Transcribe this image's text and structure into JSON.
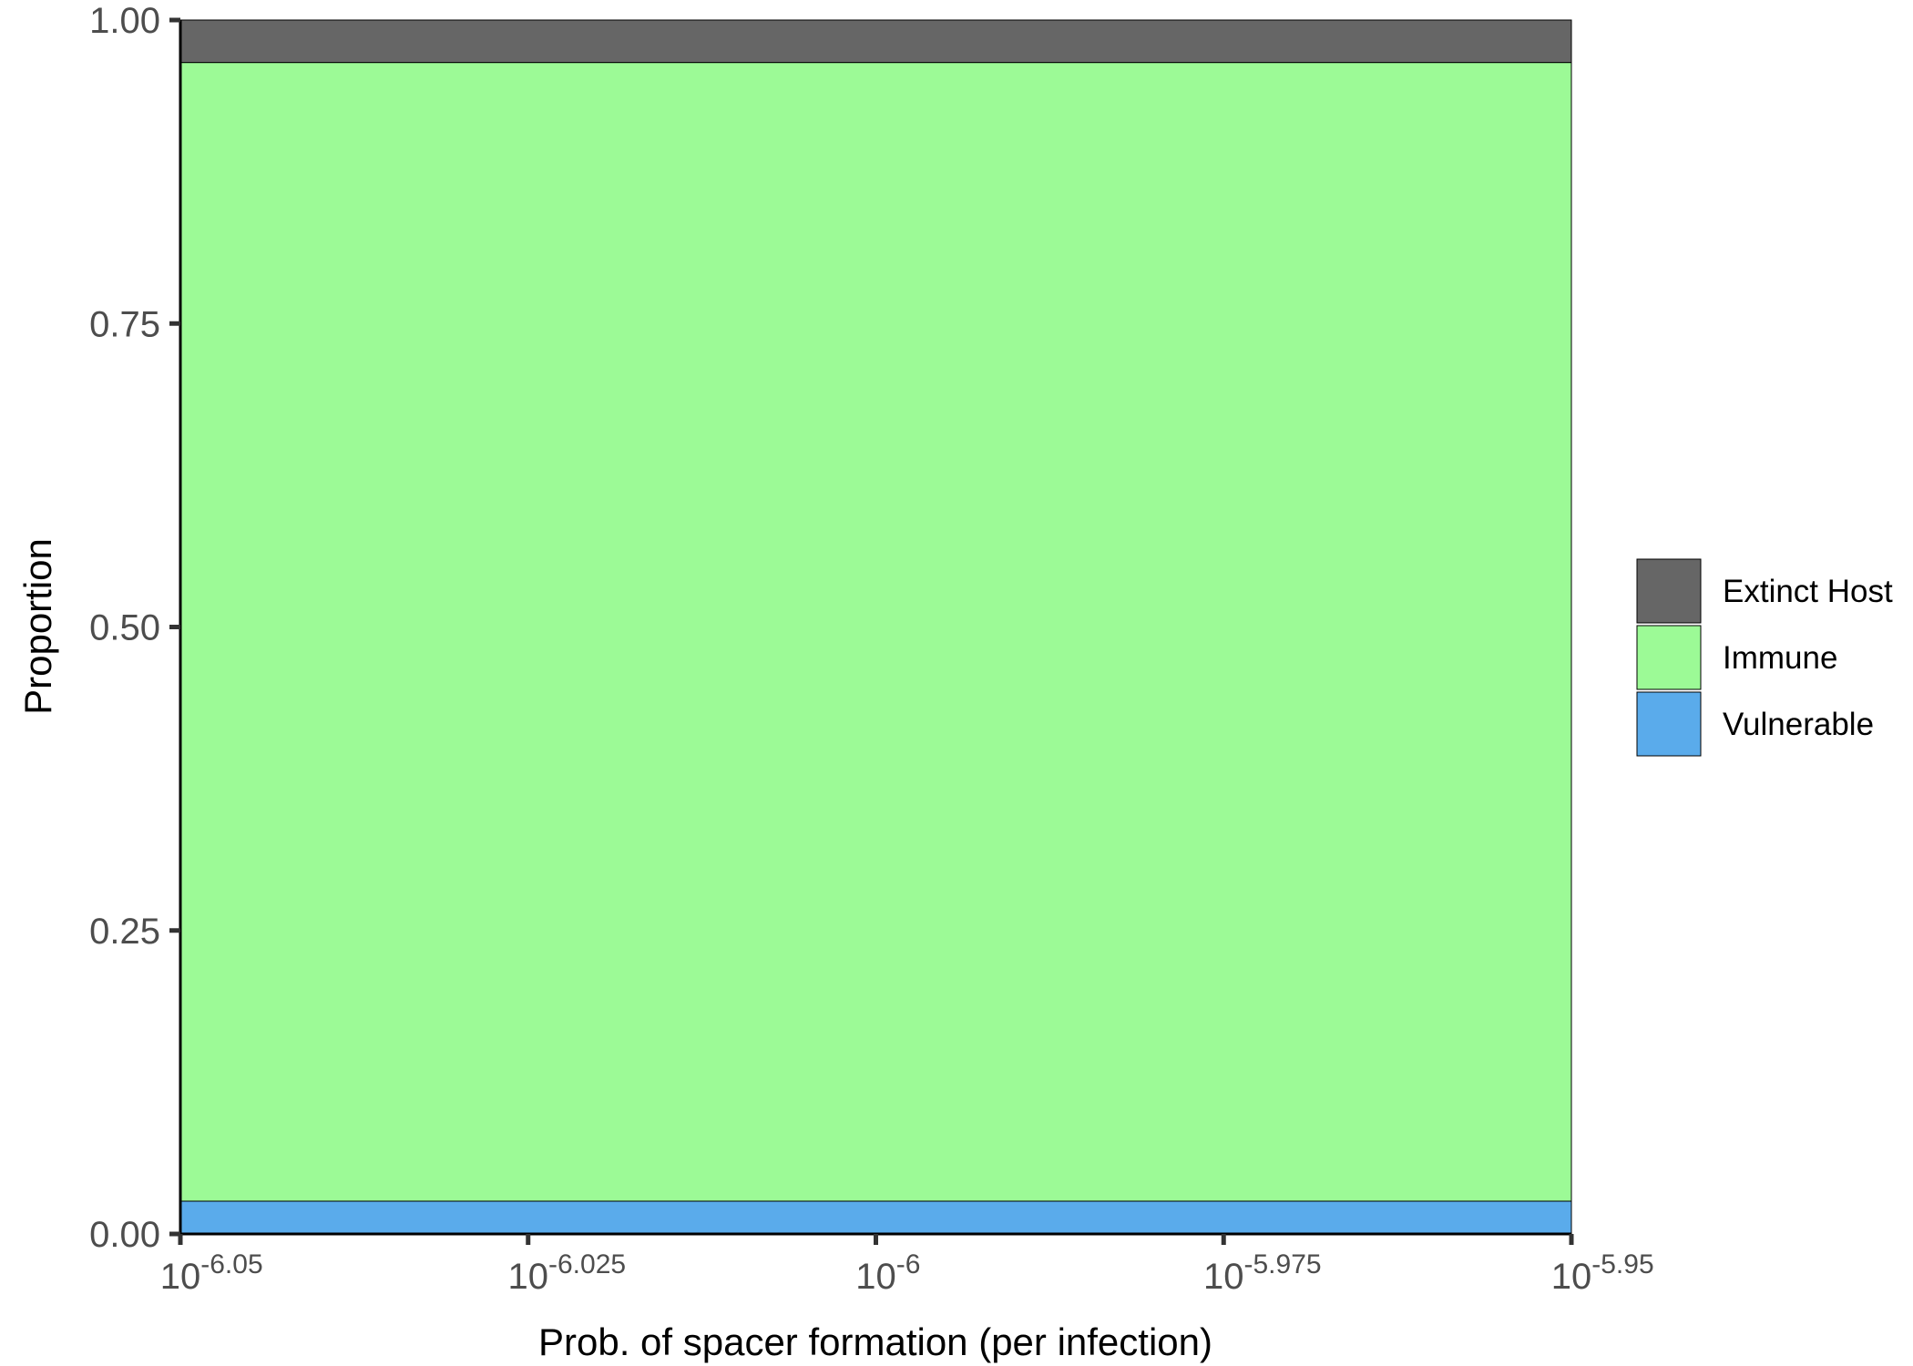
{
  "chart_data": {
    "type": "area",
    "stacked": true,
    "x_scale": "log10",
    "x": [
      8.912509e-07,
      1.122018e-06
    ],
    "xlim": [
      8.912509e-07,
      1.122018e-06
    ],
    "ylim": [
      0,
      1
    ],
    "xlabel": "Prob. of spacer formation (per infection)",
    "ylabel": "Proportion",
    "x_ticks": [
      {
        "base": "10",
        "exp": "-6.05",
        "value": 8.912509e-07
      },
      {
        "base": "10",
        "exp": "-6.025",
        "value": 9.440609e-07
      },
      {
        "base": "10",
        "exp": "-6",
        "value": 1e-06
      },
      {
        "base": "10",
        "exp": "-5.975",
        "value": 1.059254e-06
      },
      {
        "base": "10",
        "exp": "-5.95",
        "value": 1.122018e-06
      }
    ],
    "y_ticks": [
      "0.00",
      "0.25",
      "0.50",
      "0.75",
      "1.00"
    ],
    "y_tick_values": [
      0,
      0.25,
      0.5,
      0.75,
      1.0
    ],
    "series": [
      {
        "name": "Vulnerable",
        "color": "#5aabeb",
        "values": [
          0.027,
          0.027
        ]
      },
      {
        "name": "Immune",
        "color": "#9cfa96",
        "values": [
          0.938,
          0.938
        ]
      },
      {
        "name": "Extinct Host",
        "color": "#666666",
        "values": [
          0.035,
          0.035
        ]
      }
    ],
    "legend": {
      "position": "right",
      "order": [
        "Extinct Host",
        "Immune",
        "Vulnerable"
      ]
    },
    "grid": false
  }
}
